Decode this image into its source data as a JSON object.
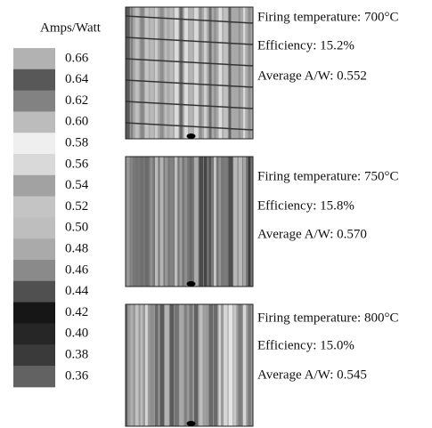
{
  "legend": {
    "title": "Amps/Watt",
    "entries": [
      {
        "label": "0.66",
        "color": "#b2b2b2"
      },
      {
        "label": "0.64",
        "color": "#585858"
      },
      {
        "label": "0.62",
        "color": "#828282"
      },
      {
        "label": "0.60",
        "color": "#bcbcbc"
      },
      {
        "label": "0.58",
        "color": "#efefef"
      },
      {
        "label": "0.56",
        "color": "#d9d9d9"
      },
      {
        "label": "0.54",
        "color": "#a2a2a2"
      },
      {
        "label": "0.52",
        "color": "#c4c4c4"
      },
      {
        "label": "0.50",
        "color": "#bebebe"
      },
      {
        "label": "0.48",
        "color": "#aaaaaa"
      },
      {
        "label": "0.46",
        "color": "#8a8a8a"
      },
      {
        "label": "0.44",
        "color": "#505050"
      },
      {
        "label": "0.42",
        "color": "#161616"
      },
      {
        "label": "0.40",
        "color": "#262626"
      },
      {
        "label": "0.38",
        "color": "#3a3a3a"
      },
      {
        "label": "0.36",
        "color": "#626262"
      }
    ]
  },
  "panels": [
    {
      "lines": [
        "Firing temperature: 700°C",
        "Efficiency: 15.2%",
        "Average A/W: 0.552"
      ]
    },
    {
      "lines": [
        "Firing temperature: 750°C",
        "Efficiency: 15.8%",
        "Average A/W: 0.570"
      ]
    },
    {
      "lines": [
        "Firing temperature: 800°C",
        "Efficiency: 15.0%",
        "Average A/W: 0.545"
      ]
    }
  ]
}
